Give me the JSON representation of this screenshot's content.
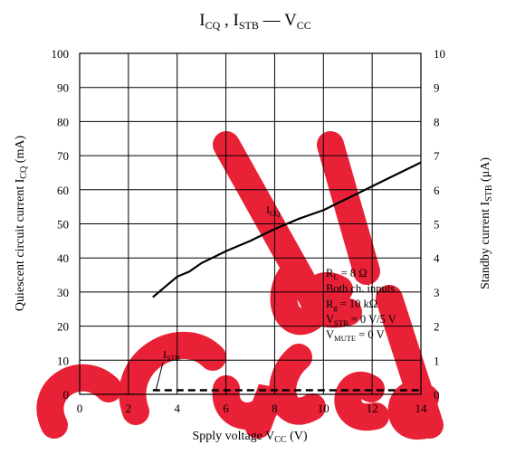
{
  "chart_data": {
    "type": "line",
    "title": {
      "a": "I",
      "a_sub": "CQ",
      "b": " , I",
      "b_sub": "STB",
      "c": " — V",
      "c_sub": "CC"
    },
    "xlabel": {
      "main": "Spply voltage  V",
      "sub": "CC",
      "unit": "  (V)"
    },
    "ylabel_left": {
      "main": "Quiescent circuit current  I",
      "sub": "CQ",
      "unit": "  (mA)"
    },
    "ylabel_right": {
      "main": "Standby current  I",
      "sub": "STB",
      "unit": "  (μA)"
    },
    "xlim": [
      0,
      14
    ],
    "ylim_left": [
      0,
      100
    ],
    "ylim_right": [
      0,
      10
    ],
    "x_ticks": [
      "0",
      "2",
      "4",
      "6",
      "8",
      "10",
      "12",
      "14"
    ],
    "y_left_ticks": [
      "0",
      "10",
      "20",
      "30",
      "40",
      "50",
      "60",
      "70",
      "80",
      "90",
      "100"
    ],
    "y_right_ticks": [
      "0",
      "1",
      "2",
      "3",
      "4",
      "5",
      "6",
      "7",
      "8",
      "9",
      "10"
    ],
    "grid": true,
    "series": [
      {
        "name": "I_CQ",
        "axis": "left",
        "style": "solid",
        "x": [
          3,
          3.5,
          4,
          4.5,
          5,
          6,
          7,
          8,
          9,
          10,
          11,
          12,
          13,
          14
        ],
        "y": [
          28.5,
          31.5,
          34.5,
          36,
          38.5,
          42,
          45,
          48.5,
          51.5,
          54,
          57.5,
          61,
          64.5,
          68
        ]
      },
      {
        "name": "I_STB",
        "axis": "right",
        "style": "dashed",
        "x": [
          3,
          14
        ],
        "y": [
          0.12,
          0.12
        ]
      }
    ],
    "series_labels": [
      {
        "text": "I",
        "sub": "CQ"
      },
      {
        "text": "I",
        "sub": "STB"
      }
    ],
    "conditions": [
      {
        "text": "R",
        "sub": "L",
        "rest": " = 8 Ω"
      },
      {
        "text": "Both ch. inputs",
        "sub": "",
        "rest": ""
      },
      {
        "text": "R",
        "sub": "g",
        "rest": " = 10 kΩ"
      },
      {
        "text": "V",
        "sub": "STB",
        "rest": " = 0 V/5 V"
      },
      {
        "text": "V",
        "sub": "MUTE",
        "rest": " = 0 V"
      }
    ],
    "colors": {
      "line": "#000000",
      "grid": "#000000",
      "watermark": "#e8162c"
    },
    "watermark": "Cancel / Discontinued"
  }
}
